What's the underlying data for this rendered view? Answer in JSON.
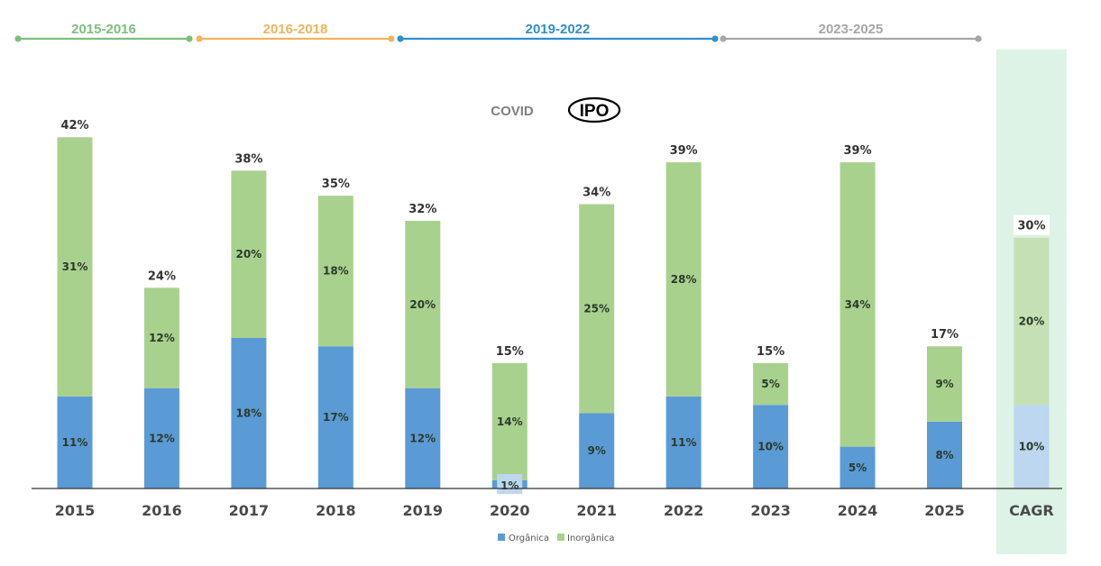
{
  "chart_data": {
    "type": "bar",
    "stacked": true,
    "title": "",
    "xlabel": "",
    "ylabel": "",
    "ylim": [
      0,
      42
    ],
    "grid": false,
    "legend_position": "bottom-center",
    "categories": [
      "2015",
      "2016",
      "2017",
      "2018",
      "2019",
      "2020",
      "2021",
      "2022",
      "2023",
      "2024",
      "2025",
      "CAGR"
    ],
    "series": [
      {
        "name": "Orgânica",
        "color": "#5b9bd5",
        "values": [
          11,
          12,
          18,
          17,
          12,
          1,
          9,
          11,
          10,
          5,
          8,
          10
        ],
        "labels": [
          "11%",
          "12%",
          "18%",
          "17%",
          "12%",
          "1%",
          "9%",
          "11%",
          "10%",
          "5%",
          "8%",
          "10%"
        ]
      },
      {
        "name": "Inorgânica",
        "color": "#a9d18e",
        "values": [
          31,
          12,
          20,
          18,
          20,
          14,
          25,
          28,
          5,
          34,
          9,
          20
        ],
        "labels": [
          "31%",
          "12%",
          "20%",
          "18%",
          "20%",
          "14%",
          "25%",
          "28%",
          "5%",
          "34%",
          "9%",
          "20%"
        ]
      }
    ],
    "totals": [
      42,
      24,
      38,
      35,
      32,
      15,
      34,
      39,
      15,
      39,
      17,
      30
    ],
    "total_labels": [
      "42%",
      "24%",
      "38%",
      "35%",
      "32%",
      "15%",
      "34%",
      "39%",
      "15%",
      "39%",
      "17%",
      "30%"
    ],
    "highlight_category": "CAGR",
    "highlight_colors": {
      "background": "#dcf3e6",
      "organic": "#bdd7ee",
      "inorganic": "#c5e0b4"
    },
    "periods": [
      {
        "label": "2015-2016",
        "color": "#7dbf7d"
      },
      {
        "label": "2016-2018",
        "color": "#f2b45a"
      },
      {
        "label": "2019-2022",
        "color": "#2f8fcf"
      },
      {
        "label": "2023-2025",
        "color": "#a6a6a6"
      }
    ],
    "annotations": [
      {
        "text": "COVID",
        "style": "plain",
        "color": "#7f7f7f"
      },
      {
        "text": "IPO",
        "style": "circled",
        "color": "#000000"
      }
    ]
  }
}
